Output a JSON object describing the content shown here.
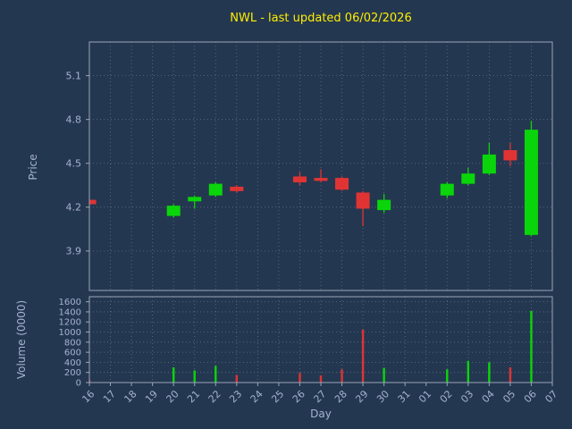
{
  "title": "NWL - last updated 06/02/2026",
  "colors": {
    "background": "#243750",
    "title": "#ffee00",
    "label": "#a4b2d0",
    "tick": "#a4b2d0",
    "grid": "#c2cbd8",
    "spine": "#9aa6b6",
    "up": "#0ad50a",
    "down": "#e03434"
  },
  "chart_data": {
    "type": "candlestick",
    "title": "NWL - last updated 06/02/2026",
    "xlabel": "Day",
    "grid": true,
    "legend": "none",
    "price_axis": {
      "label": "Price",
      "ylim": [
        3.63,
        5.33
      ],
      "ticks": [
        3.9,
        4.2,
        4.5,
        4.8,
        5.1
      ]
    },
    "volume_axis": {
      "label": "Volume (0000)",
      "ylim": [
        0,
        1700
      ],
      "ticks": [
        0,
        200,
        400,
        600,
        800,
        1000,
        1200,
        1400,
        1600
      ]
    },
    "categories": [
      "16",
      "17",
      "18",
      "19",
      "20",
      "21",
      "22",
      "23",
      "24",
      "25",
      "26",
      "27",
      "28",
      "29",
      "30",
      "31",
      "01",
      "02",
      "03",
      "04",
      "05",
      "06",
      "07"
    ],
    "candles": [
      {
        "day": "16",
        "open": 4.25,
        "high": 4.26,
        "low": 4.21,
        "close": 4.22,
        "volume": 60
      },
      {
        "day": "20",
        "open": 4.14,
        "high": 4.22,
        "low": 4.13,
        "close": 4.21,
        "volume": 300
      },
      {
        "day": "21",
        "open": 4.24,
        "high": 4.28,
        "low": 4.19,
        "close": 4.27,
        "volume": 240
      },
      {
        "day": "22",
        "open": 4.28,
        "high": 4.37,
        "low": 4.27,
        "close": 4.36,
        "volume": 330
      },
      {
        "day": "23",
        "open": 4.34,
        "high": 4.35,
        "low": 4.3,
        "close": 4.31,
        "volume": 150
      },
      {
        "day": "26",
        "open": 4.41,
        "high": 4.44,
        "low": 4.35,
        "close": 4.37,
        "volume": 190
      },
      {
        "day": "27",
        "open": 4.4,
        "high": 4.46,
        "low": 4.37,
        "close": 4.38,
        "volume": 140
      },
      {
        "day": "28",
        "open": 4.4,
        "high": 4.41,
        "low": 4.31,
        "close": 4.32,
        "volume": 260
      },
      {
        "day": "29",
        "open": 4.3,
        "high": 4.31,
        "low": 4.07,
        "close": 4.19,
        "volume": 1050
      },
      {
        "day": "30",
        "open": 4.18,
        "high": 4.29,
        "low": 4.16,
        "close": 4.25,
        "volume": 290
      },
      {
        "day": "02",
        "open": 4.28,
        "high": 4.37,
        "low": 4.26,
        "close": 4.36,
        "volume": 260
      },
      {
        "day": "03",
        "open": 4.36,
        "high": 4.47,
        "low": 4.35,
        "close": 4.43,
        "volume": 430
      },
      {
        "day": "04",
        "open": 4.43,
        "high": 4.64,
        "low": 4.42,
        "close": 4.56,
        "volume": 400
      },
      {
        "day": "05",
        "open": 4.59,
        "high": 4.64,
        "low": 4.48,
        "close": 4.52,
        "volume": 300
      },
      {
        "day": "06",
        "open": 4.01,
        "high": 4.79,
        "low": 4.0,
        "close": 4.73,
        "volume": 1420
      }
    ]
  }
}
